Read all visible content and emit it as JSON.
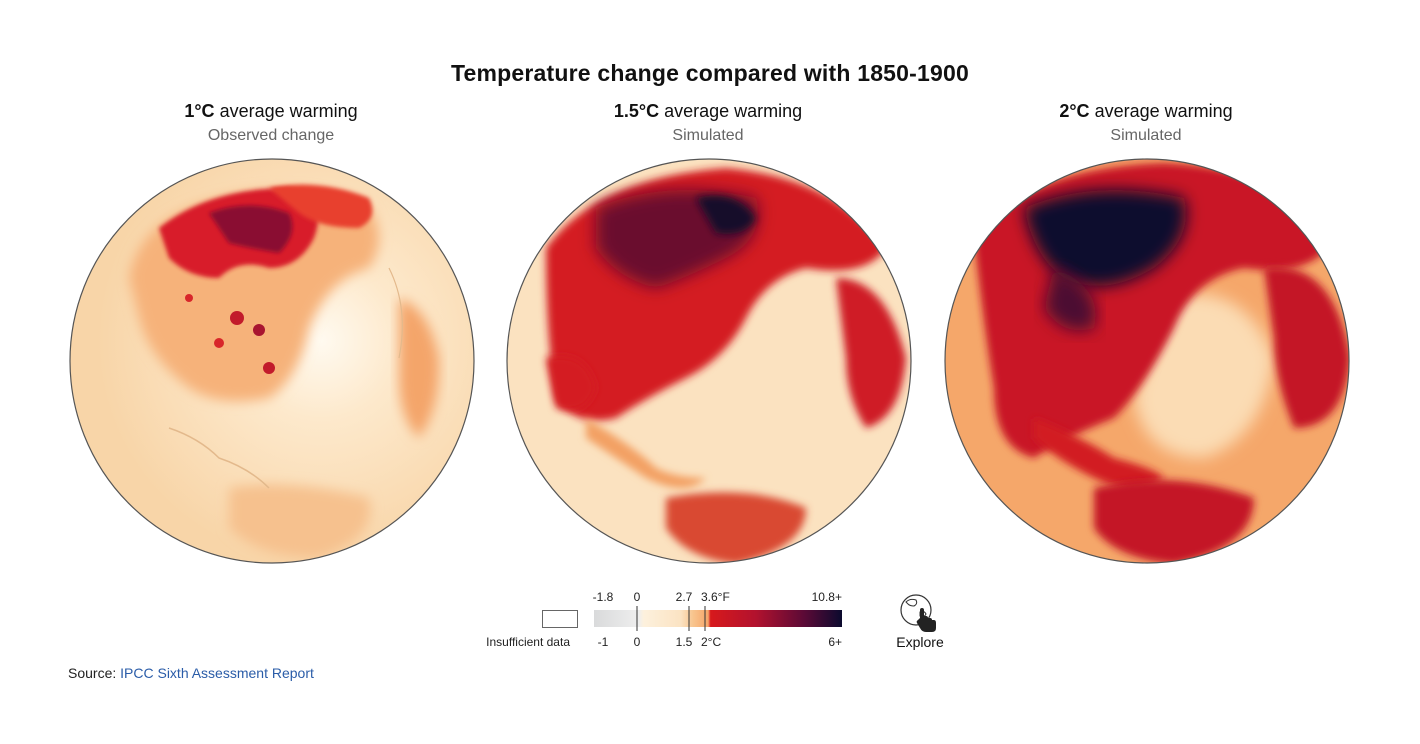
{
  "title": "Temperature change compared with 1850-1900",
  "panels": [
    {
      "warming": "1°C",
      "warming_rest": " average warming",
      "subtitle": "Observed change"
    },
    {
      "warming": "1.5°C",
      "warming_rest": " average warming",
      "subtitle": "Simulated"
    },
    {
      "warming": "2°C",
      "warming_rest": " average warming",
      "subtitle": "Simulated"
    }
  ],
  "legend": {
    "insufficient_label": "Insufficient data",
    "fahrenheit_ticks": [
      "-1.8",
      "0",
      "2.7",
      "3.6°F",
      "10.8+"
    ],
    "celsius_ticks": [
      "-1",
      "0",
      "1.5",
      "2°C",
      "6+"
    ],
    "colors": {
      "neutral_low": "#d9dadb",
      "neutral_mid": "#eeeeee",
      "warm_light": "#fbe3c3",
      "warm_mid": "#f6a66a",
      "red": "#d7191c",
      "dark_red": "#7a0a2a",
      "darkest": "#0b0a2e"
    }
  },
  "explore": {
    "label": "Explore",
    "icon": "globe-hand-icon"
  },
  "source": {
    "prefix": "Source: ",
    "link_text": "IPCC Sixth Assessment Report"
  }
}
